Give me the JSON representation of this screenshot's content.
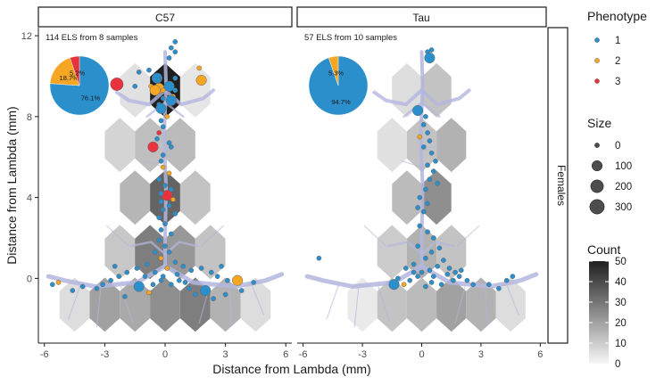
{
  "chart_data": {
    "type": "scatter",
    "xlabel": "Distance from Lambda (mm)",
    "ylabel": "Distance from Lambda (mm)",
    "xlim": [
      -6.3,
      6.3
    ],
    "ylim": [
      -3.2,
      12.4
    ],
    "x_ticks": [
      -6,
      -3,
      0,
      3,
      6
    ],
    "x_tick_labels": [
      "-6",
      "-3",
      "0",
      "3",
      "6"
    ],
    "y_ticks": [
      0,
      4,
      8,
      12
    ],
    "y_tick_labels": [
      "0",
      "4",
      "8",
      "12"
    ],
    "row_strip": "Females",
    "grid": false,
    "panels": [
      {
        "strip": "C57",
        "annotation": "114 ELS from 8 samples",
        "hex_counts": [
          {
            "x": 0,
            "y": 9.3,
            "count": 50
          },
          {
            "x": -1.5,
            "y": 9.3,
            "count": 5
          },
          {
            "x": 1.5,
            "y": 9.3,
            "count": 4
          },
          {
            "x": -2.25,
            "y": 6.6,
            "count": 8
          },
          {
            "x": 0.75,
            "y": 6.6,
            "count": 14
          },
          {
            "x": -0.75,
            "y": 6.6,
            "count": 13
          },
          {
            "x": -1.5,
            "y": 4.0,
            "count": 15
          },
          {
            "x": 0,
            "y": 4.0,
            "count": 34
          },
          {
            "x": 1.5,
            "y": 4.0,
            "count": 12
          },
          {
            "x": -2.25,
            "y": 1.3,
            "count": 11
          },
          {
            "x": -0.75,
            "y": 1.3,
            "count": 28
          },
          {
            "x": 0.75,
            "y": 1.3,
            "count": 22
          },
          {
            "x": 2.25,
            "y": 1.3,
            "count": 12
          },
          {
            "x": -4.5,
            "y": -1.3,
            "count": 6
          },
          {
            "x": -3.0,
            "y": -1.3,
            "count": 20
          },
          {
            "x": -1.5,
            "y": -1.3,
            "count": 18
          },
          {
            "x": 0,
            "y": -1.3,
            "count": 24
          },
          {
            "x": 1.5,
            "y": -1.3,
            "count": 28
          },
          {
            "x": 3.0,
            "y": -1.3,
            "count": 16
          },
          {
            "x": 4.5,
            "y": -1.3,
            "count": 6
          }
        ],
        "pie": [
          {
            "phenotype": "1",
            "share": 76.1,
            "label": "76.1%"
          },
          {
            "phenotype": "2",
            "share": 18.7,
            "label": "18.7%"
          },
          {
            "phenotype": "3",
            "share": 5.2,
            "label": "5.2%"
          }
        ],
        "points": [
          [
            0.5,
            11.7,
            1,
            0
          ],
          [
            0.3,
            11.4,
            1,
            0
          ],
          [
            0.5,
            11.2,
            1,
            0
          ],
          [
            0.2,
            10.9,
            1,
            0
          ],
          [
            -0.8,
            10.3,
            1,
            0
          ],
          [
            -1.3,
            10.2,
            1,
            0
          ],
          [
            1.7,
            10.4,
            2,
            0
          ],
          [
            -0.4,
            9.9,
            1,
            100
          ],
          [
            -0.3,
            9.8,
            1,
            0
          ],
          [
            0.5,
            9.9,
            1,
            0
          ],
          [
            1.8,
            9.8,
            2,
            100
          ],
          [
            -1.5,
            9.5,
            1,
            0
          ],
          [
            -0.7,
            9.5,
            2,
            0
          ],
          [
            -0.3,
            9.4,
            2,
            100
          ],
          [
            -0.5,
            9.3,
            2,
            100
          ],
          [
            -0.1,
            9.3,
            2,
            0
          ],
          [
            0.2,
            9.5,
            1,
            100
          ],
          [
            0.5,
            9.3,
            1,
            0
          ],
          [
            0.4,
            9.0,
            2,
            0
          ],
          [
            -0.1,
            8.9,
            1,
            0
          ],
          [
            0.3,
            8.8,
            1,
            100
          ],
          [
            -2.4,
            9.6,
            3,
            200
          ],
          [
            -0.3,
            8.6,
            1,
            0
          ],
          [
            -0.2,
            8.4,
            1,
            100
          ],
          [
            0.1,
            8.0,
            2,
            0
          ],
          [
            -0.2,
            7.8,
            1,
            0
          ],
          [
            -0.1,
            7.5,
            1,
            0
          ],
          [
            -0.3,
            7.2,
            3,
            0
          ],
          [
            -0.4,
            6.9,
            1,
            0
          ],
          [
            -0.6,
            6.5,
            3,
            100
          ],
          [
            0.2,
            6.7,
            1,
            0
          ],
          [
            0.3,
            6.5,
            1,
            0
          ],
          [
            -0.1,
            6.1,
            1,
            0
          ],
          [
            -0.2,
            5.8,
            1,
            0
          ],
          [
            -0.1,
            5.5,
            2,
            0
          ],
          [
            0.2,
            5.2,
            2,
            0
          ],
          [
            -0.3,
            4.9,
            1,
            0
          ],
          [
            0.0,
            4.6,
            1,
            0
          ],
          [
            0.3,
            4.4,
            1,
            0
          ],
          [
            0.1,
            4.1,
            3,
            100
          ],
          [
            -0.2,
            4.2,
            1,
            0
          ],
          [
            0.4,
            3.9,
            2,
            0
          ],
          [
            0.2,
            3.6,
            1,
            0
          ],
          [
            -0.2,
            3.8,
            1,
            0
          ],
          [
            -0.1,
            3.4,
            1,
            0
          ],
          [
            0.5,
            3.2,
            1,
            0
          ],
          [
            -0.3,
            3.0,
            1,
            0
          ],
          [
            0.0,
            2.7,
            1,
            0
          ],
          [
            -0.2,
            2.4,
            1,
            0
          ],
          [
            0.3,
            2.2,
            1,
            0
          ],
          [
            -0.3,
            1.9,
            1,
            0
          ],
          [
            0.0,
            1.6,
            1,
            0
          ],
          [
            0.2,
            1.3,
            1,
            0
          ],
          [
            -0.5,
            1.3,
            1,
            0
          ],
          [
            -0.2,
            1.0,
            2,
            0
          ],
          [
            0.5,
            0.8,
            1,
            0
          ],
          [
            -0.9,
            0.7,
            1,
            0
          ],
          [
            0.9,
            0.6,
            1,
            0
          ],
          [
            -1.4,
            0.5,
            1,
            0
          ],
          [
            1.3,
            0.4,
            1,
            0
          ],
          [
            -1.9,
            0.3,
            1,
            0
          ],
          [
            1.8,
            0.5,
            1,
            0
          ],
          [
            -2.3,
            0.1,
            1,
            0
          ],
          [
            2.3,
            0.3,
            1,
            0
          ],
          [
            -2.7,
            -0.1,
            1,
            0
          ],
          [
            2.6,
            0.1,
            1,
            0
          ],
          [
            -3.1,
            -0.3,
            1,
            0
          ],
          [
            3.1,
            -0.1,
            1,
            0
          ],
          [
            -1.3,
            -0.4,
            1,
            100
          ],
          [
            -0.6,
            -0.3,
            1,
            0
          ],
          [
            0.3,
            -0.3,
            1,
            0
          ],
          [
            1.2,
            -0.5,
            1,
            0
          ],
          [
            2.0,
            -0.6,
            1,
            100
          ],
          [
            3.0,
            -0.8,
            1,
            0
          ],
          [
            3.8,
            -0.6,
            1,
            0
          ],
          [
            -3.4,
            -0.5,
            1,
            0
          ],
          [
            -4.1,
            -0.4,
            1,
            0
          ],
          [
            -5.3,
            -0.2,
            2,
            0
          ],
          [
            -5.6,
            -0.3,
            1,
            0
          ],
          [
            -4.6,
            -0.6,
            1,
            0
          ],
          [
            -2.0,
            -0.9,
            1,
            0
          ],
          [
            -0.8,
            -0.7,
            2,
            0
          ],
          [
            1.5,
            -0.8,
            1,
            0
          ],
          [
            2.4,
            -1.0,
            1,
            0
          ],
          [
            3.6,
            -0.1,
            2,
            100
          ],
          [
            4.4,
            -0.2,
            1,
            0
          ],
          [
            -0.1,
            0.1,
            1,
            0
          ],
          [
            0.6,
            0.2,
            1,
            0
          ],
          [
            -0.5,
            0.3,
            1,
            0
          ],
          [
            1.0,
            -0.2,
            1,
            0
          ],
          [
            -1.0,
            0.1,
            1,
            0
          ],
          [
            2.8,
            0.6,
            1,
            0
          ],
          [
            -2.5,
            0.6,
            1,
            0
          ],
          [
            0.1,
            0.5,
            2,
            0
          ],
          [
            0.7,
            -0.1,
            1,
            0
          ],
          [
            -0.2,
            -0.1,
            1,
            0
          ]
        ]
      },
      {
        "strip": "Tau",
        "annotation": "57 ELS from 10 samples",
        "hex_counts": [
          {
            "x": -0.75,
            "y": 9.3,
            "count": 6
          },
          {
            "x": 0.75,
            "y": 9.3,
            "count": 12
          },
          {
            "x": -1.5,
            "y": 6.6,
            "count": 5
          },
          {
            "x": 0,
            "y": 6.6,
            "count": 12
          },
          {
            "x": 1.5,
            "y": 6.6,
            "count": 16
          },
          {
            "x": -0.75,
            "y": 4.0,
            "count": 14
          },
          {
            "x": 0.75,
            "y": 4.0,
            "count": 24
          },
          {
            "x": -1.5,
            "y": 1.3,
            "count": 10
          },
          {
            "x": 0,
            "y": 1.3,
            "count": 16
          },
          {
            "x": 1.5,
            "y": 1.3,
            "count": 12
          },
          {
            "x": -3.0,
            "y": -1.3,
            "count": 3
          },
          {
            "x": -1.5,
            "y": -1.3,
            "count": 12
          },
          {
            "x": 0,
            "y": -1.3,
            "count": 14
          },
          {
            "x": 1.5,
            "y": -1.3,
            "count": 20
          },
          {
            "x": 3.0,
            "y": -1.3,
            "count": 16
          },
          {
            "x": 4.5,
            "y": -1.3,
            "count": 6
          }
        ],
        "pie": [
          {
            "phenotype": "1",
            "share": 94.7,
            "label": "94.7%"
          },
          {
            "phenotype": "2",
            "share": 5.3,
            "label": "5.3%"
          }
        ],
        "points": [
          [
            0.3,
            11.2,
            1,
            0
          ],
          [
            0.5,
            11.3,
            1,
            0
          ],
          [
            0.4,
            10.9,
            1,
            100
          ],
          [
            -0.2,
            8.3,
            1,
            100
          ],
          [
            0.2,
            8.0,
            1,
            0
          ],
          [
            0.1,
            7.6,
            1,
            0
          ],
          [
            0.3,
            7.2,
            1,
            0
          ],
          [
            -0.1,
            7.0,
            2,
            0
          ],
          [
            0.4,
            6.8,
            1,
            0
          ],
          [
            0.1,
            6.5,
            1,
            0
          ],
          [
            0.5,
            6.2,
            1,
            0
          ],
          [
            0.7,
            5.8,
            1,
            0
          ],
          [
            0.3,
            5.6,
            1,
            0
          ],
          [
            0.6,
            5.3,
            1,
            0
          ],
          [
            0.4,
            4.9,
            1,
            0
          ],
          [
            0.8,
            4.7,
            1,
            0
          ],
          [
            0.2,
            4.4,
            1,
            0
          ],
          [
            -0.1,
            4.0,
            1,
            0
          ],
          [
            0.3,
            3.7,
            1,
            0
          ],
          [
            -0.2,
            3.5,
            1,
            0
          ],
          [
            0.1,
            3.3,
            1,
            0
          ],
          [
            -0.1,
            2.6,
            1,
            0
          ],
          [
            0.3,
            2.3,
            1,
            0
          ],
          [
            0.6,
            2.0,
            1,
            0
          ],
          [
            0.9,
            1.5,
            1,
            0
          ],
          [
            0.5,
            1.3,
            1,
            0
          ],
          [
            0.2,
            1.0,
            1,
            0
          ],
          [
            -0.4,
            0.7,
            1,
            0
          ],
          [
            0.4,
            0.4,
            1,
            0
          ],
          [
            0.8,
            0.6,
            1,
            0
          ],
          [
            1.1,
            0.9,
            1,
            0
          ],
          [
            1.4,
            0.5,
            1,
            0
          ],
          [
            1.7,
            0.3,
            1,
            0
          ],
          [
            -0.8,
            0.5,
            1,
            0
          ],
          [
            -1.2,
            0.0,
            1,
            0
          ],
          [
            -1.4,
            -0.3,
            1,
            100
          ],
          [
            -0.9,
            -0.3,
            2,
            0
          ],
          [
            -0.6,
            -0.1,
            1,
            0
          ],
          [
            -0.2,
            0.1,
            1,
            0
          ],
          [
            0.5,
            -0.2,
            1,
            0
          ],
          [
            1.0,
            -0.3,
            1,
            0
          ],
          [
            1.9,
            0.1,
            1,
            0
          ],
          [
            2.3,
            -0.1,
            1,
            0
          ],
          [
            2.6,
            -0.3,
            1,
            0
          ],
          [
            3.4,
            -0.3,
            1,
            0
          ],
          [
            3.9,
            -0.5,
            1,
            0
          ],
          [
            4.3,
            -0.1,
            1,
            0
          ],
          [
            4.6,
            0.1,
            1,
            0
          ],
          [
            -5.2,
            1.0,
            1,
            0
          ],
          [
            0.0,
            0.3,
            1,
            0
          ],
          [
            0.6,
            0.1,
            1,
            0
          ],
          [
            1.3,
            0.2,
            1,
            0
          ],
          [
            -0.4,
            0.3,
            1,
            0
          ],
          [
            0.2,
            -0.4,
            1,
            0
          ],
          [
            2.0,
            0.4,
            1,
            0
          ],
          [
            1.6,
            -0.1,
            1,
            0
          ],
          [
            -0.2,
            1.6,
            1,
            0
          ]
        ]
      }
    ],
    "legend": {
      "placement": "right",
      "phenotype": {
        "title": "Phenotype",
        "items": [
          {
            "label": "1",
            "color": "#2b8fcc"
          },
          {
            "label": "2",
            "color": "#f5a623"
          },
          {
            "label": "3",
            "color": "#e8333f"
          }
        ]
      },
      "size": {
        "title": "Size",
        "items": [
          {
            "label": "0",
            "value": 0
          },
          {
            "label": "100",
            "value": 100
          },
          {
            "label": "200",
            "value": 200
          },
          {
            "label": "300",
            "value": 300
          }
        ]
      },
      "count": {
        "title": "Count",
        "range": [
          0,
          50
        ],
        "tick_labels": [
          "0",
          "10",
          "20",
          "30",
          "40",
          "50"
        ],
        "ticks": [
          0,
          10,
          20,
          30,
          40,
          50
        ],
        "colors": [
          "#f7f7f7",
          "#1f1f1f"
        ]
      }
    }
  }
}
